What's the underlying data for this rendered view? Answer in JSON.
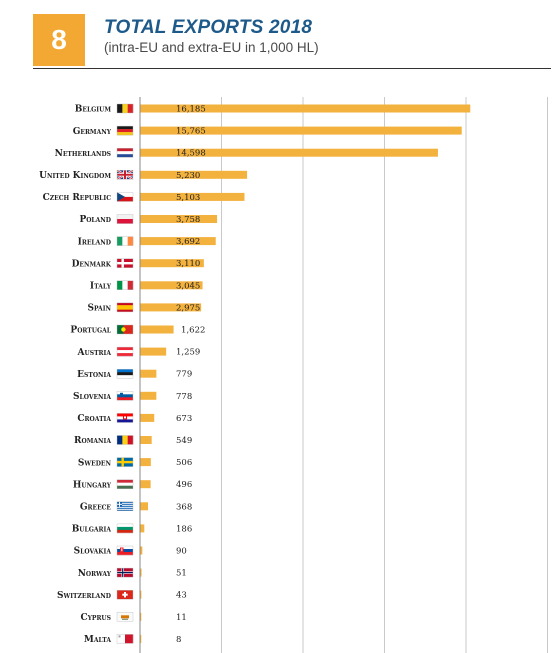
{
  "header": {
    "number": "8",
    "title": "TOTAL EXPORTS 2018",
    "subtitle": "(intra-EU and extra-EU in 1,000 HL)"
  },
  "colors": {
    "bar": "#f3b13d",
    "accent": "#f3a833",
    "title": "#1d5a8a",
    "grid": "#c9c9c9"
  },
  "chart_data": {
    "type": "bar",
    "orientation": "horizontal",
    "title": "TOTAL EXPORTS 2018",
    "subtitle": "(intra-EU and extra-EU in 1,000 HL)",
    "xlim": [
      0,
      20000
    ],
    "grid": true,
    "categories": [
      "Belgium",
      "Germany",
      "Netherlands",
      "United Kingdom",
      "Czech Republic",
      "Poland",
      "Ireland",
      "Denmark",
      "Italy",
      "Spain",
      "Portugal",
      "Austria",
      "Estonia",
      "Slovenia",
      "Croatia",
      "Romania",
      "Sweden",
      "Hungary",
      "Greece",
      "Bulgaria",
      "Slovakia",
      "Norway",
      "Switzerland",
      "Cyprus",
      "Malta"
    ],
    "values": [
      16185,
      15765,
      14598,
      5230,
      5103,
      3758,
      3692,
      3110,
      3045,
      2975,
      1622,
      1259,
      779,
      778,
      673,
      549,
      506,
      496,
      368,
      186,
      90,
      51,
      43,
      11,
      8
    ],
    "value_labels": [
      "16,185",
      "15,765",
      "14,598",
      "5,230",
      "5,103",
      "3,758",
      "3,692",
      "3,110",
      "3,045",
      "2,975",
      "1,622",
      "1,259",
      "779",
      "778",
      "673",
      "549",
      "506",
      "496",
      "368",
      "186",
      "90",
      "51",
      "43",
      "11",
      "8"
    ],
    "flags": [
      "belgium-flag-icon",
      "germany-flag-icon",
      "netherlands-flag-icon",
      "united-kingdom-flag-icon",
      "czech-republic-flag-icon",
      "poland-flag-icon",
      "ireland-flag-icon",
      "denmark-flag-icon",
      "italy-flag-icon",
      "spain-flag-icon",
      "portugal-flag-icon",
      "austria-flag-icon",
      "estonia-flag-icon",
      "slovenia-flag-icon",
      "croatia-flag-icon",
      "romania-flag-icon",
      "sweden-flag-icon",
      "hungary-flag-icon",
      "greece-flag-icon",
      "bulgaria-flag-icon",
      "slovakia-flag-icon",
      "norway-flag-icon",
      "switzerland-flag-icon",
      "cyprus-flag-icon",
      "malta-flag-icon"
    ]
  }
}
